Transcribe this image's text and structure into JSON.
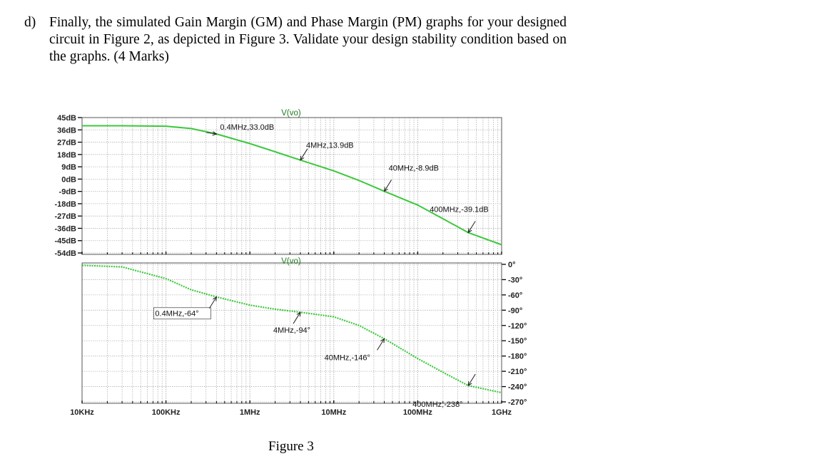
{
  "question": {
    "number": "d)",
    "text": "Finally, the simulated Gain Margin (GM) and Phase Margin (PM) graphs for your designed circuit in Figure 2, as depicted in Figure 3. Validate your design stability condition based on the graphs. (4 Marks)"
  },
  "figure_caption": "Figure 3",
  "colors": {
    "trace": "#3cc83c",
    "grid": "#b4b4b4",
    "axis": "#000000"
  },
  "chart_data": [
    {
      "type": "line",
      "title": "V(vo)",
      "x_scale": "log",
      "xlim": [
        "10KHz",
        "1GHz"
      ],
      "x_ticks": [
        "10KHz",
        "100KHz",
        "1MHz",
        "10MHz",
        "100MHz",
        "1GHz"
      ],
      "y_ticks": [
        "45dB",
        "36dB",
        "27dB",
        "18dB",
        "9dB",
        "0dB",
        "-9dB",
        "-18dB",
        "-27dB",
        "-36dB",
        "-45dB",
        "-54dB"
      ],
      "ylim": [
        -54,
        45
      ],
      "grid": true,
      "series": [
        {
          "unit": "dB",
          "points": [
            {
              "x": 10000,
              "y": 39.0
            },
            {
              "x": 30000,
              "y": 39.0
            },
            {
              "x": 100000,
              "y": 38.7
            },
            {
              "x": 200000,
              "y": 37.0
            },
            {
              "x": 400000,
              "y": 33.0
            },
            {
              "x": 1000000,
              "y": 26.0
            },
            {
              "x": 2000000,
              "y": 20.0
            },
            {
              "x": 4000000,
              "y": 13.9
            },
            {
              "x": 10000000,
              "y": 6.0
            },
            {
              "x": 20000000,
              "y": -1.0
            },
            {
              "x": 40000000,
              "y": -8.9
            },
            {
              "x": 100000000,
              "y": -19.0
            },
            {
              "x": 200000000,
              "y": -29.0
            },
            {
              "x": 400000000,
              "y": -39.1
            },
            {
              "x": 1000000000,
              "y": -48.0
            }
          ]
        }
      ],
      "annotations": [
        {
          "label": "0.4MHz,33.0dB",
          "x": 400000,
          "y": 33.0
        },
        {
          "label": "4MHz,13.9dB",
          "x": 4000000,
          "y": 13.9
        },
        {
          "label": "40MHz,-8.9dB",
          "x": 40000000,
          "y": -8.9
        },
        {
          "label": "400MHz,-39.1dB",
          "x": 400000000,
          "y": -39.1
        }
      ]
    },
    {
      "type": "line",
      "title": "V(vo)",
      "x_scale": "log",
      "xlim": [
        "10KHz",
        "1GHz"
      ],
      "x_ticks": [
        "10KHz",
        "100KHz",
        "1MHz",
        "10MHz",
        "100MHz",
        "1GHz"
      ],
      "y_ticks": [
        "0°",
        "-30°",
        "-60°",
        "-90°",
        "-120°",
        "-150°",
        "-180°",
        "-210°",
        "-240°",
        "-270°"
      ],
      "ylim": [
        -270,
        0
      ],
      "grid": true,
      "series": [
        {
          "unit": "deg",
          "points": [
            {
              "x": 10000,
              "y": -2
            },
            {
              "x": 30000,
              "y": -5
            },
            {
              "x": 100000,
              "y": -28
            },
            {
              "x": 200000,
              "y": -50
            },
            {
              "x": 400000,
              "y": -64
            },
            {
              "x": 1000000,
              "y": -80
            },
            {
              "x": 2000000,
              "y": -88
            },
            {
              "x": 4000000,
              "y": -94
            },
            {
              "x": 10000000,
              "y": -103
            },
            {
              "x": 20000000,
              "y": -120
            },
            {
              "x": 40000000,
              "y": -146
            },
            {
              "x": 100000000,
              "y": -185
            },
            {
              "x": 200000000,
              "y": -212
            },
            {
              "x": 400000000,
              "y": -238
            },
            {
              "x": 1000000000,
              "y": -252
            }
          ]
        }
      ],
      "annotations": [
        {
          "label": "0.4MHz,-64°",
          "x": 400000,
          "y": -64
        },
        {
          "label": "4MHz,-94°",
          "x": 4000000,
          "y": -94
        },
        {
          "label": "40MHz,-146°",
          "x": 40000000,
          "y": -146
        },
        {
          "label": "400MHz,-238°",
          "x": 400000000,
          "y": -238
        }
      ]
    }
  ]
}
